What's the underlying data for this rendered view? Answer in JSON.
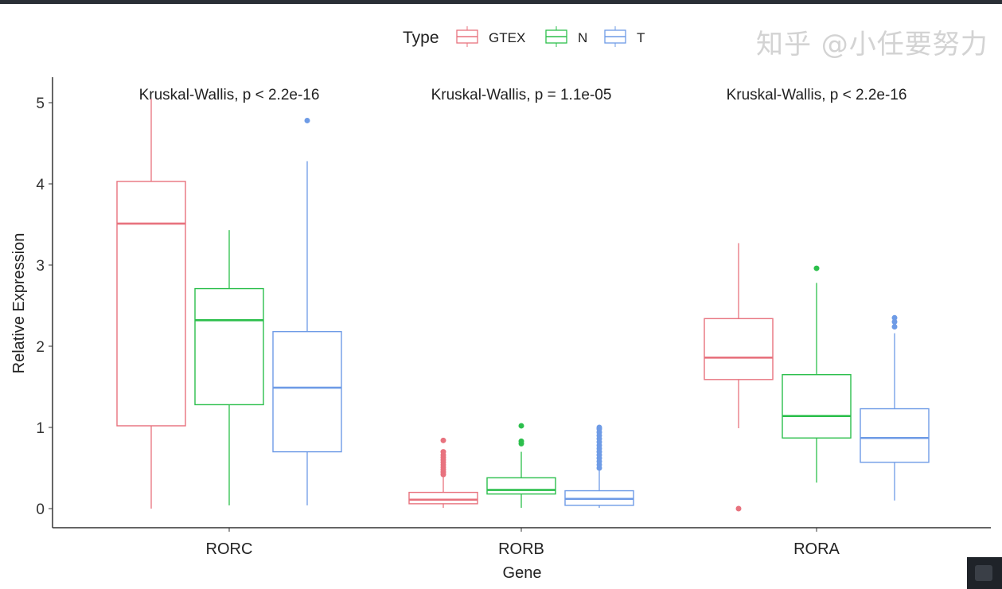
{
  "chart_data": {
    "type": "box",
    "xlabel": "Gene",
    "ylabel": "Relative Expression",
    "ylim": [
      -0.25,
      5.3
    ],
    "yticks": [
      0,
      1,
      2,
      3,
      4,
      5
    ],
    "grid": false,
    "legend": {
      "title": "Type",
      "placement": "top",
      "entries": [
        "GTEX",
        "N",
        "T"
      ]
    },
    "colors": {
      "GTEX": "#E8727E",
      "N": "#2CBF4C",
      "T": "#6E9BE6"
    },
    "categories": [
      "RORC",
      "RORB",
      "RORA"
    ],
    "annotations": [
      "Kruskal-Wallis, p < 2.2e-16",
      "Kruskal-Wallis, p = 1.1e-05",
      "Kruskal-Wallis, p < 2.2e-16"
    ],
    "series": [
      {
        "name": "GTEX",
        "boxes": [
          {
            "low": 0.0,
            "q1": 1.02,
            "median": 3.51,
            "q3": 4.03,
            "high": 5.05,
            "outliers": []
          },
          {
            "low": 0.01,
            "q1": 0.06,
            "median": 0.11,
            "q3": 0.2,
            "high": 0.4,
            "outliers": [
              0.42,
              0.45,
              0.48,
              0.51,
              0.54,
              0.57,
              0.6,
              0.63,
              0.66,
              0.7,
              0.84
            ]
          },
          {
            "low": 0.99,
            "q1": 1.59,
            "median": 1.86,
            "q3": 2.34,
            "high": 3.27,
            "outliers": [
              0.0
            ]
          }
        ]
      },
      {
        "name": "N",
        "boxes": [
          {
            "low": 0.04,
            "q1": 1.28,
            "median": 2.32,
            "q3": 2.71,
            "high": 3.43,
            "outliers": []
          },
          {
            "low": 0.01,
            "q1": 0.18,
            "median": 0.23,
            "q3": 0.38,
            "high": 0.7,
            "outliers": [
              0.8,
              0.83,
              1.02
            ]
          },
          {
            "low": 0.32,
            "q1": 0.87,
            "median": 1.14,
            "q3": 1.65,
            "high": 2.78,
            "outliers": [
              2.96
            ]
          }
        ]
      },
      {
        "name": "T",
        "boxes": [
          {
            "low": 0.04,
            "q1": 0.7,
            "median": 1.49,
            "q3": 2.18,
            "high": 4.28,
            "outliers": [
              4.78
            ]
          },
          {
            "low": 0.01,
            "q1": 0.04,
            "median": 0.12,
            "q3": 0.22,
            "high": 0.48,
            "outliers": [
              0.5,
              0.54,
              0.58,
              0.62,
              0.66,
              0.7,
              0.74,
              0.78,
              0.82,
              0.86,
              0.9,
              0.94,
              0.98,
              1.0
            ]
          },
          {
            "low": 0.1,
            "q1": 0.57,
            "median": 0.87,
            "q3": 1.23,
            "high": 2.16,
            "outliers": [
              2.24,
              2.3,
              2.35
            ]
          }
        ]
      }
    ]
  },
  "watermark": "知乎 @小任要努力"
}
